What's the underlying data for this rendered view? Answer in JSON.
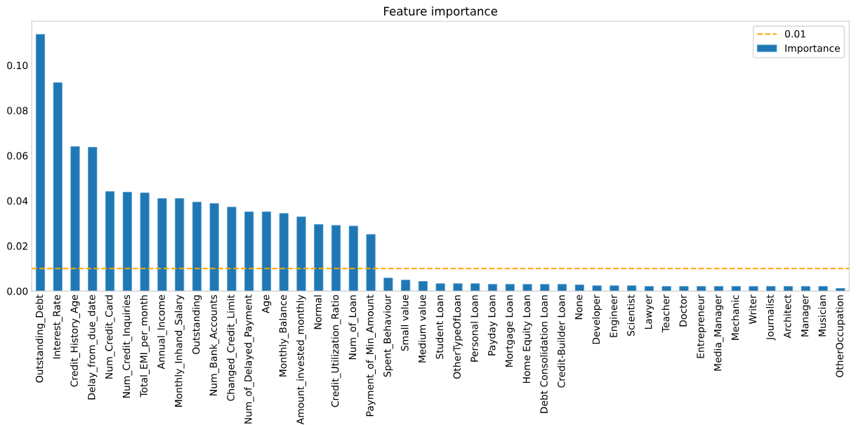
{
  "chart_data": {
    "type": "bar",
    "title": "Feature importance",
    "categories": [
      "Outstanding_Debt",
      "Interest_Rate",
      "Credit_History_Age",
      "Delay_from_due_date",
      "Num_Credit_Card",
      "Num_Credit_Inquiries",
      "Total_EMI_per_month",
      "Annual_Income",
      "Monthly_Inhand_Salary",
      "Outstanding",
      "Num_Bank_Accounts",
      "Changed_Credit_Limit",
      "Num_of_Delayed_Payment",
      "Age",
      "Monthly_Balance",
      "Amount_invested_monthly",
      "Normal",
      "Credit_Utilization_Ratio",
      "Num_of_Loan",
      "Payment_of_Min_Amount",
      "Spent_Behaviour",
      "Small value",
      "Medium value",
      "Student Loan",
      "OtherTypeOfLoan",
      "Personal Loan",
      "Payday Loan",
      "Mortgage Loan",
      "Home Equity Loan",
      "Debt Consolidation Loan",
      "Credit-Builder Loan",
      "None",
      "Developer",
      "Engineer",
      "Scientist",
      "Lawyer",
      "Teacher",
      "Doctor",
      "Entrepreneur",
      "Media_Manager",
      "Mechanic",
      "Writer",
      "Journalist",
      "Architect",
      "Manager",
      "Musician",
      "OtherOccupation"
    ],
    "series": [
      {
        "name": "Importance",
        "color": "#1f77b4",
        "values": [
          0.1137,
          0.0923,
          0.064,
          0.0637,
          0.0441,
          0.0438,
          0.0435,
          0.041,
          0.041,
          0.0394,
          0.0388,
          0.0372,
          0.0351,
          0.0351,
          0.0344,
          0.0329,
          0.0295,
          0.0291,
          0.0288,
          0.0251,
          0.0058,
          0.0049,
          0.0043,
          0.0033,
          0.0033,
          0.0033,
          0.003,
          0.003,
          0.003,
          0.003,
          0.003,
          0.0028,
          0.0024,
          0.0024,
          0.0024,
          0.0021,
          0.0021,
          0.0021,
          0.0021,
          0.0021,
          0.0021,
          0.0021,
          0.0021,
          0.0021,
          0.0021,
          0.0021,
          0.0012
        ]
      }
    ],
    "ylim": [
      0,
      0.1195
    ],
    "yticks": [
      {
        "value": 0,
        "label": "0.00"
      },
      {
        "value": 0.02,
        "label": "0.02"
      },
      {
        "value": 0.04,
        "label": "0.04"
      },
      {
        "value": 0.06,
        "label": "0.06"
      },
      {
        "value": 0.08,
        "label": "0.08"
      },
      {
        "value": 0.1,
        "label": "0.10"
      }
    ],
    "ref_lines": [
      {
        "axis": "y",
        "value": 0.01,
        "label": "0.01",
        "color": "#ffa500",
        "line_style": "dashed"
      }
    ],
    "grid": false,
    "legend": "top right"
  }
}
